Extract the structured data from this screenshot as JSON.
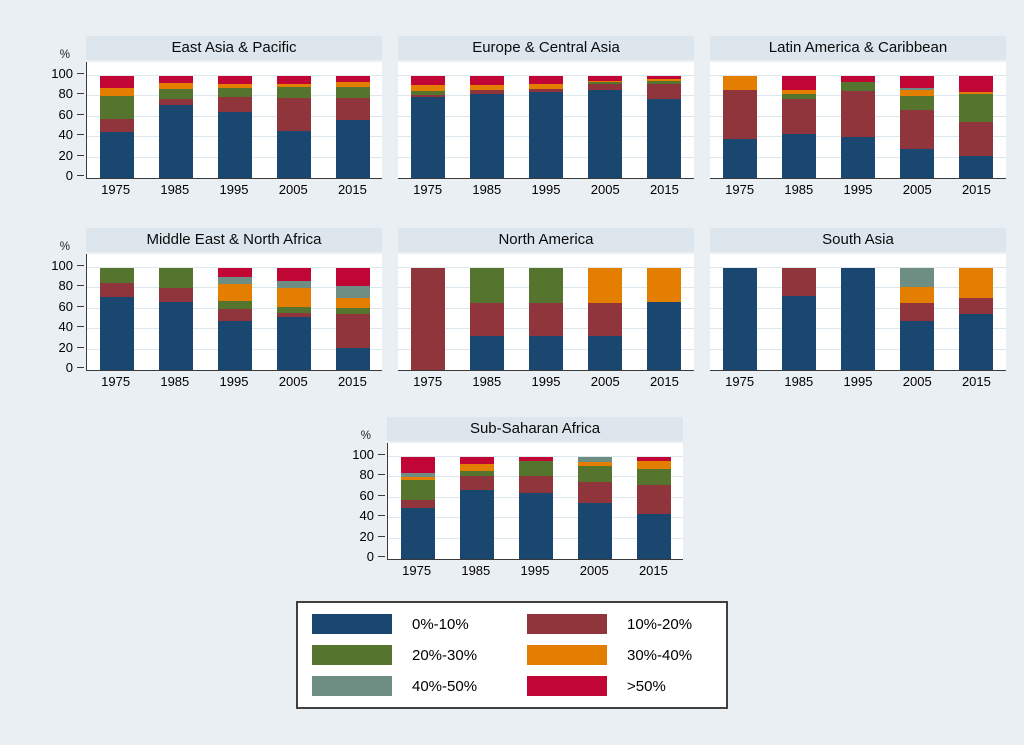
{
  "figure": {
    "background": "#e9eff3",
    "panel_title_background": "#dce6ec",
    "plot_background": "#ffffff",
    "gridline_color": "#dce8ee",
    "axis_color": "#3a3a3a"
  },
  "chart_data": {
    "type": "bar",
    "stacked": true,
    "title": "",
    "xlabel": "",
    "ylabel": "%",
    "ylim": [
      0,
      100
    ],
    "yticks": [
      0,
      20,
      40,
      60,
      80,
      100
    ],
    "grid": true,
    "legend_position": "bottom",
    "years": [
      "1975",
      "1985",
      "1995",
      "2005",
      "2015"
    ],
    "categories": [
      {
        "label": "0%-10%",
        "color": "#1a476f"
      },
      {
        "label": "10%-20%",
        "color": "#90353b"
      },
      {
        "label": "20%-30%",
        "color": "#55752f"
      },
      {
        "label": "30%-40%",
        "color": "#e37e00"
      },
      {
        "label": "40%-50%",
        "color": "#6e8e84"
      },
      {
        "label": ">50%",
        "color": "#c10534"
      }
    ],
    "panels": [
      {
        "title": "East Asia & Pacific",
        "values": [
          [
            45,
            13,
            22,
            8,
            0,
            12
          ],
          [
            72,
            5,
            10,
            6,
            0,
            7
          ],
          [
            65,
            14,
            9,
            4,
            0,
            8
          ],
          [
            46,
            32,
            11,
            3,
            0,
            8
          ],
          [
            57,
            21,
            11,
            5,
            0,
            6
          ]
        ]
      },
      {
        "title": "Europe & Central Asia",
        "values": [
          [
            79,
            2,
            4,
            6,
            0,
            9
          ],
          [
            82,
            4,
            0,
            5,
            0,
            9
          ],
          [
            84,
            3,
            0,
            5,
            0,
            8
          ],
          [
            86,
            6,
            2,
            1,
            0,
            5
          ],
          [
            77,
            15,
            3,
            2,
            0,
            3
          ]
        ]
      },
      {
        "title": "Latin America & Caribbean",
        "values": [
          [
            38,
            48,
            0,
            14,
            0,
            0
          ],
          [
            43,
            34,
            5,
            4,
            0,
            14
          ],
          [
            40,
            45,
            9,
            0,
            0,
            6
          ],
          [
            28,
            39,
            13,
            6,
            2,
            12
          ],
          [
            22,
            33,
            27,
            2,
            0,
            16
          ]
        ]
      },
      {
        "title": "Middle East & North Africa",
        "values": [
          [
            72,
            13,
            15,
            0,
            0,
            0
          ],
          [
            67,
            13,
            20,
            0,
            0,
            0
          ],
          [
            48,
            12,
            8,
            16,
            7,
            9
          ],
          [
            52,
            4,
            6,
            18,
            7,
            13
          ],
          [
            22,
            33,
            6,
            10,
            11,
            18
          ]
        ]
      },
      {
        "title": "North America",
        "values": [
          [
            0,
            100,
            0,
            0,
            0,
            0
          ],
          [
            33,
            33,
            34,
            0,
            0,
            0
          ],
          [
            33,
            33,
            34,
            0,
            0,
            0
          ],
          [
            33,
            33,
            0,
            34,
            0,
            0
          ],
          [
            67,
            0,
            0,
            33,
            0,
            0
          ]
        ]
      },
      {
        "title": "South Asia",
        "values": [
          [
            100,
            0,
            0,
            0,
            0,
            0
          ],
          [
            73,
            27,
            0,
            0,
            0,
            0
          ],
          [
            100,
            0,
            0,
            0,
            0,
            0
          ],
          [
            48,
            18,
            0,
            15,
            19,
            0
          ],
          [
            55,
            16,
            0,
            29,
            0,
            0
          ]
        ]
      },
      {
        "title": "Sub-Saharan Africa",
        "values": [
          [
            50,
            8,
            19,
            3,
            4,
            16
          ],
          [
            68,
            13,
            5,
            7,
            0,
            7
          ],
          [
            65,
            16,
            15,
            0,
            0,
            4
          ],
          [
            55,
            21,
            15,
            4,
            5,
            0
          ],
          [
            44,
            29,
            15,
            8,
            0,
            4
          ]
        ]
      }
    ]
  }
}
